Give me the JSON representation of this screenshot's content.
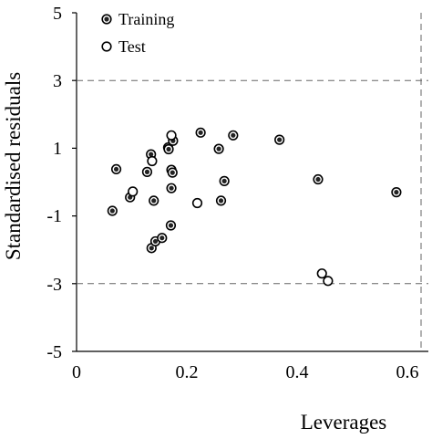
{
  "chart_data": {
    "type": "scatter",
    "xlabel": "Leverages",
    "ylabel": "Standardised residuals",
    "xlim": [
      0,
      0.6
    ],
    "ylim": [
      -5,
      5
    ],
    "x_ticks": [
      "0",
      "0.2",
      "0.4",
      "0.6"
    ],
    "y_ticks": [
      "5",
      "3",
      "1",
      "-1",
      "-3",
      "-5"
    ],
    "grid": false,
    "legend_position": "top-left",
    "reference_lines": {
      "horizontal": [
        3,
        -3
      ],
      "vertical": [
        0.625
      ]
    },
    "series": [
      {
        "name": "Training",
        "marker": "filled-circle",
        "color": "#000000",
        "points": [
          [
            0.065,
            -0.85
          ],
          [
            0.072,
            0.38
          ],
          [
            0.097,
            -0.45
          ],
          [
            0.128,
            0.3
          ],
          [
            0.135,
            0.82
          ],
          [
            0.14,
            -0.55
          ],
          [
            0.136,
            -1.95
          ],
          [
            0.143,
            -1.75
          ],
          [
            0.155,
            -1.65
          ],
          [
            0.166,
            1.02
          ],
          [
            0.167,
            0.97
          ],
          [
            0.172,
            0.36
          ],
          [
            0.174,
            0.28
          ],
          [
            0.175,
            1.22
          ],
          [
            0.172,
            -0.18
          ],
          [
            0.171,
            -1.28
          ],
          [
            0.225,
            1.46
          ],
          [
            0.258,
            0.98
          ],
          [
            0.262,
            -0.55
          ],
          [
            0.268,
            0.03
          ],
          [
            0.284,
            1.38
          ],
          [
            0.368,
            1.25
          ],
          [
            0.438,
            0.08
          ],
          [
            0.58,
            -0.3
          ]
        ]
      },
      {
        "name": "Test",
        "marker": "open-circle",
        "color": "#000000",
        "points": [
          [
            0.102,
            -0.28
          ],
          [
            0.137,
            0.62
          ],
          [
            0.172,
            1.38
          ],
          [
            0.219,
            -0.62
          ],
          [
            0.445,
            -2.7
          ],
          [
            0.456,
            -2.92
          ]
        ]
      }
    ]
  }
}
